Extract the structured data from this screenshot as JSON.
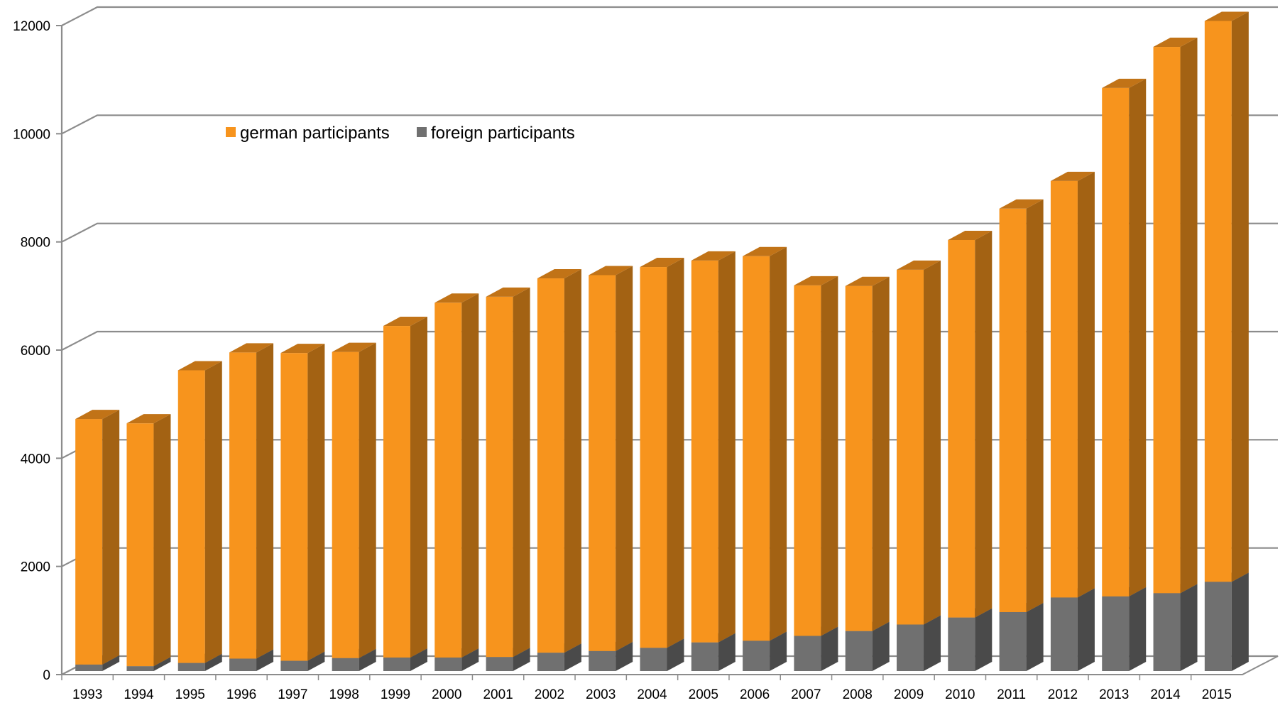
{
  "chart_data": {
    "type": "bar",
    "stacked": true,
    "three_d": true,
    "title": "",
    "xlabel": "",
    "ylabel": "",
    "ylim": [
      0,
      12000
    ],
    "yticks": [
      "0",
      "2000",
      "4000",
      "6000",
      "8000",
      "10000",
      "12000"
    ],
    "grid": true,
    "legend_position": "top-left",
    "categories": [
      "1993",
      "1994",
      "1995",
      "1996",
      "1997",
      "1998",
      "1999",
      "2000",
      "2001",
      "2002",
      "2003",
      "2004",
      "2005",
      "2006",
      "2007",
      "2008",
      "2009",
      "2010",
      "2011",
      "2012",
      "2013",
      "2014",
      "2015"
    ],
    "series": [
      {
        "name": "german participants",
        "color": "#F7941D",
        "values": [
          4540,
          4490,
          5410,
          5660,
          5690,
          5660,
          6130,
          6560,
          6660,
          6920,
          6950,
          7040,
          7060,
          7110,
          6480,
          6380,
          6560,
          6980,
          7460,
          7700,
          9400,
          10100,
          10370
        ]
      },
      {
        "name": "foreign participants",
        "color": "#707070",
        "values": [
          120,
          90,
          150,
          230,
          190,
          240,
          250,
          250,
          260,
          340,
          370,
          430,
          530,
          560,
          650,
          740,
          860,
          990,
          1090,
          1360,
          1380,
          1440,
          1650
        ]
      }
    ]
  }
}
